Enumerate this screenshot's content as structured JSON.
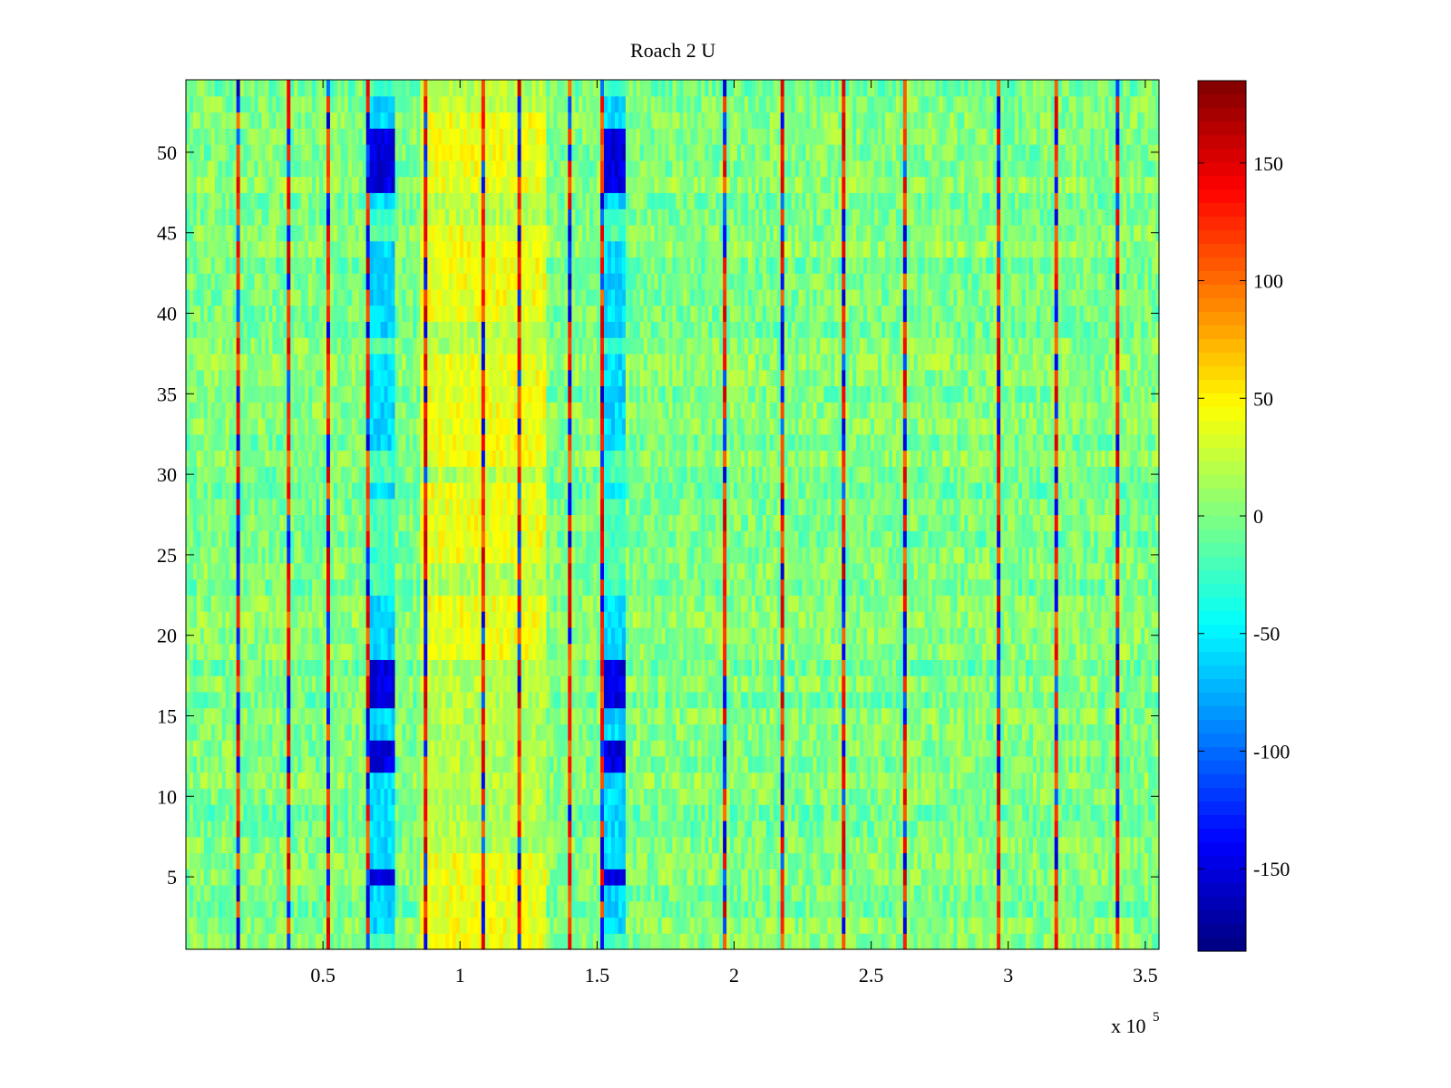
{
  "chart_data": {
    "type": "heatmap",
    "title": "Roach 2 U",
    "xlabel": "",
    "ylabel": "",
    "x_multiplier": "x 10",
    "x_multiplier_exp": "5",
    "xlim": [
      0.0,
      3.55
    ],
    "ylim": [
      0.5,
      54.5
    ],
    "x_ticks": [
      0.5,
      1,
      1.5,
      2,
      2.5,
      3,
      3.5
    ],
    "x_tick_labels": [
      "0.5",
      "1",
      "1.5",
      "2",
      "2.5",
      "3",
      "3.5"
    ],
    "y_ticks": [
      5,
      10,
      15,
      20,
      25,
      30,
      35,
      40,
      45,
      50
    ],
    "y_tick_labels": [
      "5",
      "10",
      "15",
      "20",
      "25",
      "30",
      "35",
      "40",
      "45",
      "50"
    ],
    "colorbar": {
      "colormap": "jet",
      "clim": [
        -185,
        185
      ],
      "ticks": [
        150,
        100,
        50,
        0,
        -50,
        -100,
        -150
      ],
      "tick_labels": [
        "150",
        "100",
        "50",
        "0",
        "-50",
        "-100",
        "-150"
      ]
    },
    "rows": 54,
    "baseline_value": 0,
    "features": {
      "low_bands": [
        {
          "x_range": [
            0.66,
            0.76
          ],
          "rows_low": [
            5,
            12,
            13,
            16,
            17,
            18,
            48,
            49,
            50,
            51
          ],
          "value": -150
        },
        {
          "x_range": [
            1.51,
            1.61
          ],
          "rows_low": [
            5,
            12,
            13,
            16,
            17,
            18,
            48,
            49,
            50,
            51
          ],
          "value": -150
        },
        {
          "x_range": [
            0.66,
            0.76
          ],
          "rows_mid": [
            2,
            3,
            4,
            6,
            7,
            8,
            9,
            10,
            11,
            14,
            15,
            19,
            20,
            21,
            22,
            29,
            32,
            33,
            34,
            35,
            36,
            37,
            39,
            40,
            41,
            42,
            43,
            44,
            47,
            52,
            53
          ],
          "value": -60
        },
        {
          "x_range": [
            1.51,
            1.61
          ],
          "rows_mid": [
            2,
            3,
            4,
            6,
            7,
            8,
            9,
            10,
            11,
            14,
            15,
            19,
            20,
            21,
            22,
            29,
            32,
            33,
            34,
            35,
            36,
            37,
            39,
            40,
            41,
            42,
            43,
            44,
            47,
            52,
            53
          ],
          "value": -60
        }
      ],
      "high_band": {
        "x_range": [
          0.86,
          1.32
        ],
        "value": 40
      },
      "spike_columns": [
        0.19,
        0.37,
        0.52,
        0.66,
        0.87,
        1.09,
        1.22,
        1.4,
        1.52,
        1.96,
        2.18,
        2.4,
        2.62,
        2.96,
        3.18,
        3.4
      ],
      "spike_value": 160
    }
  }
}
